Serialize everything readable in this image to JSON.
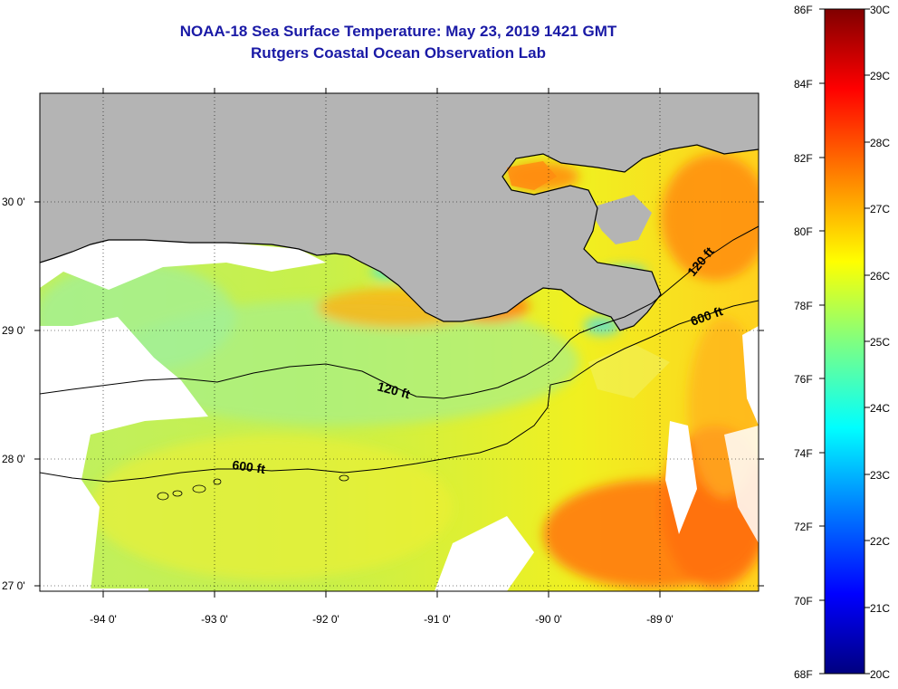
{
  "title": {
    "line1": "NOAA-18 Sea Surface Temperature:  May 23, 2019 1421 GMT",
    "line2": "Rutgers Coastal Ocean Observation Lab"
  },
  "map": {
    "lat_labels": [
      "30 0'",
      "29 0'",
      "28 0'",
      "27 0'"
    ],
    "lon_labels": [
      "-94 0'",
      "-93 0'",
      "-92 0'",
      "-91 0'",
      "-90 0'",
      "-89 0'"
    ],
    "contour_labels": {
      "c120_west": "120 ft",
      "c120_east": "120 ft",
      "c600_west": "600 ft",
      "c600_east": "600 ft"
    },
    "land_color": "#b4b4b4",
    "cloud_color": "#ffffff"
  },
  "colorbar": {
    "f_labels": [
      "86F",
      "84F",
      "82F",
      "80F",
      "78F",
      "76F",
      "74F",
      "72F",
      "70F",
      "68F"
    ],
    "c_labels": [
      "30C",
      "29C",
      "28C",
      "27C",
      "26C",
      "25C",
      "24C",
      "23C",
      "22C",
      "21C",
      "20C"
    ],
    "colors": [
      "#000080",
      "#0000ff",
      "#0080ff",
      "#00ffff",
      "#80ff80",
      "#ffff00",
      "#ff8000",
      "#ff0000",
      "#800000"
    ]
  }
}
